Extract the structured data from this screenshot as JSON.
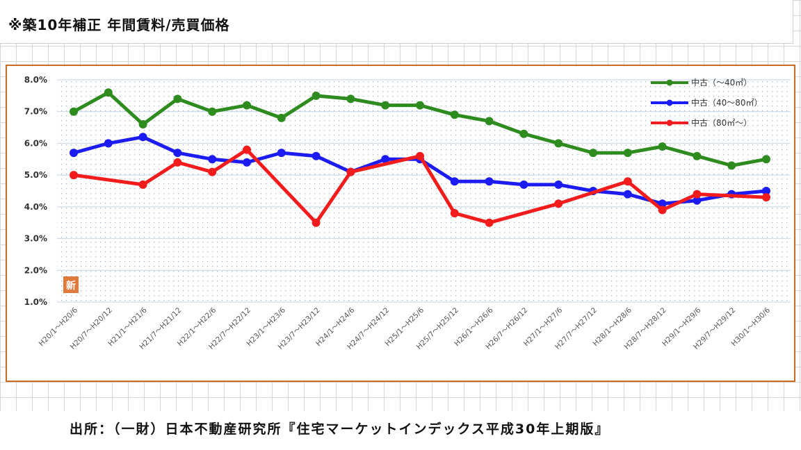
{
  "page": {
    "title": "※築10年補正 年間賃料/売買価格",
    "source": "出所：（一財）日本不動産研究所『住宅マーケットインデックス平成30年上期版』"
  },
  "chart_data": {
    "type": "line",
    "title": "",
    "xlabel": "",
    "ylabel": "",
    "ylim": [
      1.0,
      8.0
    ],
    "yticks": [
      {
        "value": 1.0,
        "label": "1.0%"
      },
      {
        "value": 2.0,
        "label": "2.0%"
      },
      {
        "value": 3.0,
        "label": "3.0%"
      },
      {
        "value": 4.0,
        "label": "4.0%"
      },
      {
        "value": 5.0,
        "label": "5.0%"
      },
      {
        "value": 6.0,
        "label": "6.0%"
      },
      {
        "value": 7.0,
        "label": "7.0%"
      },
      {
        "value": 8.0,
        "label": "8.0%"
      }
    ],
    "categories": [
      "H20/1～H20/6",
      "H20/7～H20/12",
      "H21/1～H21/6",
      "H21/7～H21/12",
      "H22/1～H22/6",
      "H22/7～H22/12",
      "H23/1～H23/6",
      "H23/7～H23/12",
      "H24/1～H24/6",
      "H24/7～H24/12",
      "H25/1～H25/6",
      "H25/7～H25/12",
      "H26/1～H26/6",
      "H26/7～H26/12",
      "H27/1～H27/6",
      "H27/7～H27/12",
      "H28/1～H28/6",
      "H28/7～H28/12",
      "H29/1～H29/6",
      "H29/7～H29/12",
      "H30/1～H30/6"
    ],
    "series": [
      {
        "name": "中古（～40㎡）",
        "color": "#2e8b1e",
        "values": [
          7.0,
          7.6,
          6.6,
          7.4,
          7.0,
          7.2,
          6.8,
          7.5,
          7.4,
          7.2,
          7.2,
          6.9,
          6.7,
          6.3,
          6.0,
          5.7,
          5.7,
          5.9,
          5.6,
          5.3,
          5.5
        ]
      },
      {
        "name": "中古（40～80㎡）",
        "color": "#1c1cf2",
        "values": [
          5.7,
          6.0,
          6.2,
          5.7,
          5.5,
          5.4,
          5.7,
          5.6,
          5.1,
          5.5,
          5.5,
          4.8,
          4.8,
          4.7,
          4.7,
          4.5,
          4.4,
          4.1,
          4.2,
          4.4,
          4.5
        ]
      },
      {
        "name": "中古（80㎡～）",
        "color": "#f21c1c",
        "values": [
          5.0,
          null,
          4.7,
          5.4,
          5.1,
          5.8,
          null,
          3.5,
          5.1,
          null,
          5.6,
          3.8,
          3.5,
          null,
          4.1,
          null,
          4.8,
          3.9,
          4.4,
          null,
          4.3
        ]
      }
    ],
    "legend_position": "top-right",
    "badge": "新",
    "badge_color": "#e07a3c"
  }
}
